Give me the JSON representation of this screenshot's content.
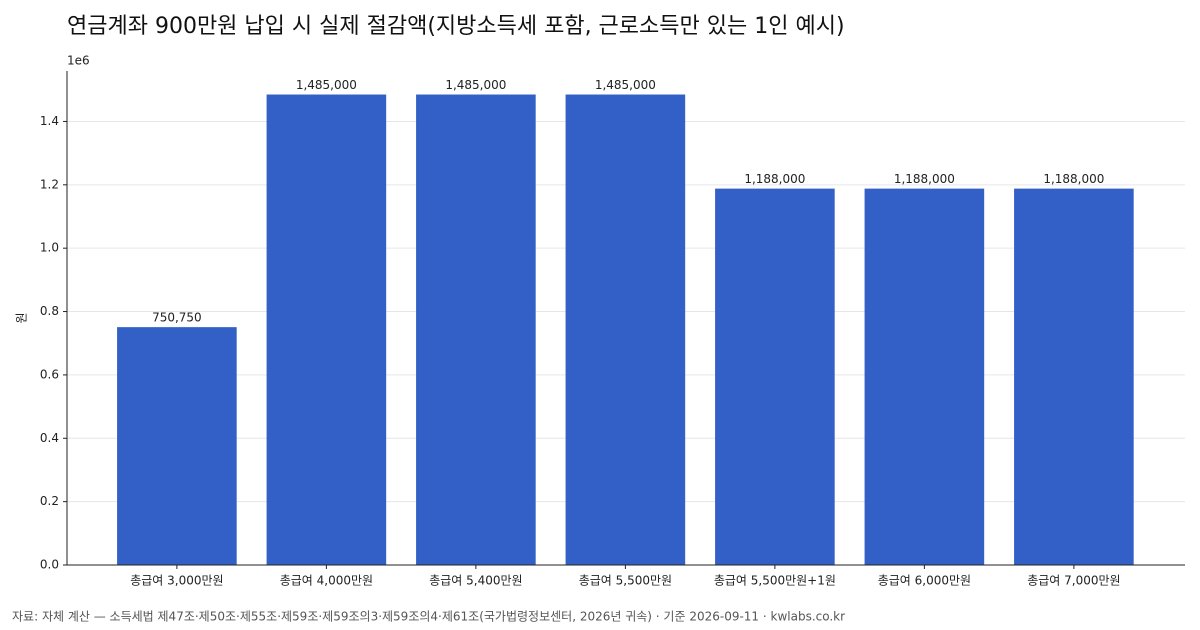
{
  "chart_data": {
    "type": "bar",
    "title": "연금계좌 900만원 납입 시 실제 절감액(지방소득세 포함, 근로소득만 있는 1인 예시)",
    "ylabel": "원",
    "y_offset_label": "1e6",
    "categories": [
      "총급여 3,000만원",
      "총급여 4,000만원",
      "총급여 5,400만원",
      "총급여 5,500만원",
      "총급여 5,500만원+1원",
      "총급여 6,000만원",
      "총급여 7,000만원"
    ],
    "values": [
      750750,
      1485000,
      1485000,
      1485000,
      1188000,
      1188000,
      1188000
    ],
    "value_labels": [
      "750,750",
      "1,485,000",
      "1,485,000",
      "1,485,000",
      "1,188,000",
      "1,188,000",
      "1,188,000"
    ],
    "color": "#3260c6",
    "ylim": [
      0,
      1559250
    ],
    "yticks": [
      {
        "value": 0,
        "label": "0.0"
      },
      {
        "value": 200000,
        "label": "0.2"
      },
      {
        "value": 400000,
        "label": "0.4"
      },
      {
        "value": 600000,
        "label": "0.6"
      },
      {
        "value": 800000,
        "label": "0.8"
      },
      {
        "value": 1000000,
        "label": "1.0"
      },
      {
        "value": 1200000,
        "label": "1.2"
      },
      {
        "value": 1400000,
        "label": "1.4"
      }
    ],
    "grid": true,
    "source": "자료: 자체 계산 — 소득세법 제47조·제50조·제55조·제59조·제59조의3·제59조의4·제61조(국가법령정보센터, 2026년 귀속) · 기준 2026-09-11 · kwlabs.co.kr"
  }
}
